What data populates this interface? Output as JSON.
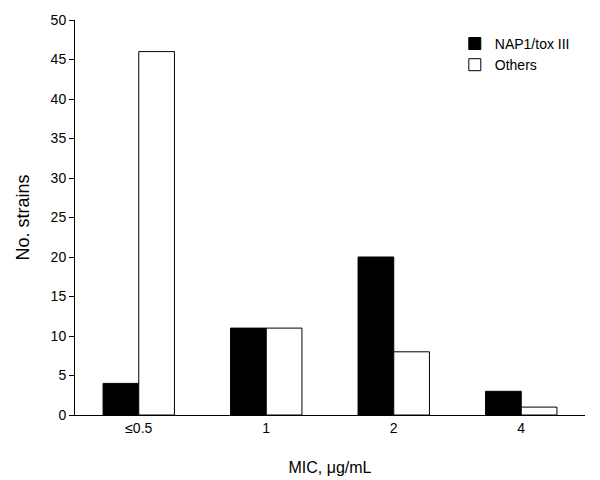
{
  "chart_data": {
    "type": "bar",
    "x_label": "MIC, μg/mL",
    "y_label": "No. strains",
    "categories": [
      "≤0.5",
      "1",
      "2",
      "4"
    ],
    "series": [
      {
        "name": "NAP1/tox III",
        "color": "#000000",
        "values": [
          4,
          11,
          20,
          3
        ]
      },
      {
        "name": "Others",
        "color": "#ffffff",
        "values": [
          46,
          11,
          8,
          1
        ]
      }
    ],
    "ylim": [
      0,
      50
    ],
    "yticks": [
      0,
      5,
      10,
      15,
      20,
      25,
      30,
      35,
      40,
      45,
      50
    ],
    "grid": false,
    "legend": "top right"
  }
}
